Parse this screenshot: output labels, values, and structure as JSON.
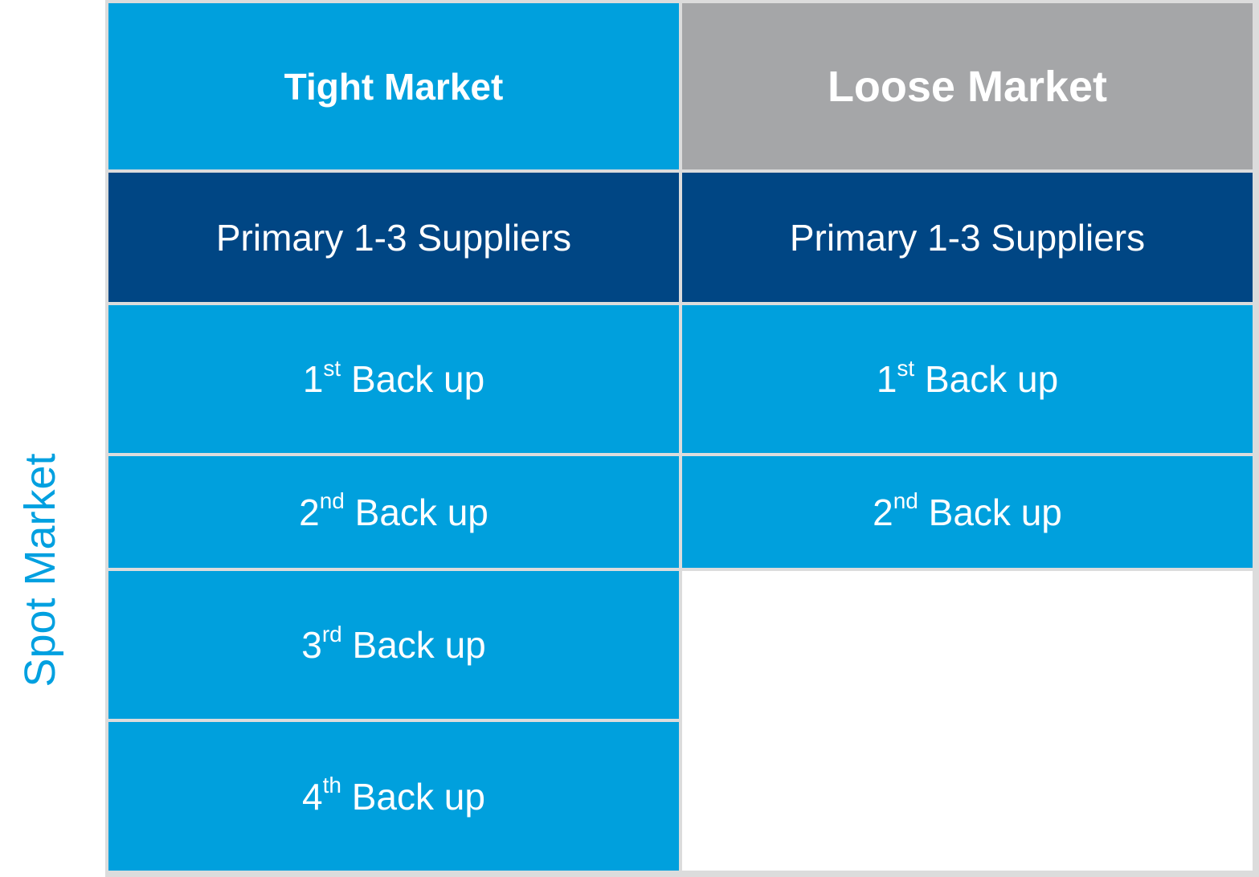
{
  "side_label": "Spot Market",
  "colors": {
    "light_blue": "#00a0dd",
    "dark_blue": "#004684",
    "grey": "#a5a6a8",
    "side_label": "#00a0e0"
  },
  "columns": [
    {
      "header": "Tight Market",
      "primary": "Primary 1-3 Suppliers",
      "backups": [
        {
          "num": "1",
          "sup": "st",
          "text": " Back up"
        },
        {
          "num": "2",
          "sup": "nd",
          "text": " Back up"
        },
        {
          "num": "3",
          "sup": "rd",
          "text": " Back up"
        },
        {
          "num": "4",
          "sup": "th",
          "text": " Back up"
        }
      ]
    },
    {
      "header": "Loose Market",
      "primary": "Primary 1-3 Suppliers",
      "backups": [
        {
          "num": "1",
          "sup": "st",
          "text": " Back up"
        },
        {
          "num": "2",
          "sup": "nd",
          "text": " Back up"
        }
      ]
    }
  ]
}
